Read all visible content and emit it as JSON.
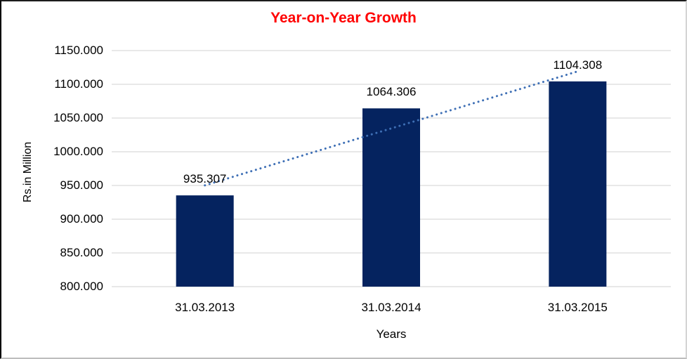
{
  "chart_data": {
    "type": "bar",
    "title": "Year-on-Year Growth",
    "title_color": "#FF0000",
    "xlabel": "Years",
    "ylabel": "Rs.in Million",
    "categories": [
      "31.03.2013",
      "31.03.2014",
      "31.03.2015"
    ],
    "values": [
      935.307,
      1064.306,
      1104.308
    ],
    "value_label_decimals": 3,
    "ylim": [
      800,
      1150
    ],
    "ytick_step": 50,
    "ytick_decimals": 3,
    "grid": true,
    "legend": "none",
    "bar_color": "#05235F",
    "gridline_color": "#D9D9D9",
    "trendline": {
      "type": "linear",
      "style": "dotted",
      "color": "#3E6FB5"
    }
  }
}
